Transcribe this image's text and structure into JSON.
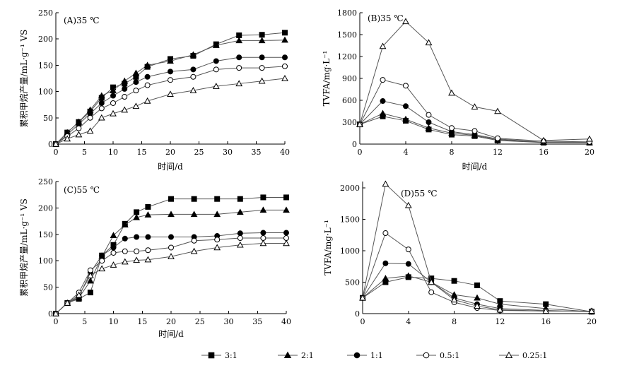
{
  "legend": [
    {
      "label": "3:1",
      "marker": "square",
      "fill": "#000000"
    },
    {
      "label": "2:1",
      "marker": "triangle",
      "fill": "#000000"
    },
    {
      "label": "1:1",
      "marker": "circle",
      "fill": "#000000"
    },
    {
      "label": "0.5:1",
      "marker": "circle",
      "fill": "#ffffff"
    },
    {
      "label": "0.25:1",
      "marker": "triangle",
      "fill": "#ffffff"
    }
  ],
  "colors": {
    "line": "#555555",
    "marker": "#000000"
  },
  "chart_data": [
    {
      "id": "A",
      "type": "line",
      "panel_label": "(A)35 ℃",
      "xlabel": "时间/d",
      "ylabel": "累积甲烷产量/mL·g⁻¹ VS",
      "xlim": [
        0,
        40
      ],
      "ylim": [
        0,
        250
      ],
      "xticks": [
        0,
        5,
        10,
        15,
        20,
        25,
        30,
        35,
        40
      ],
      "yticks": [
        0,
        50,
        100,
        150,
        200,
        250
      ],
      "grid": false,
      "x": [
        0,
        2,
        4,
        6,
        8,
        10,
        12,
        14,
        16,
        20,
        24,
        28,
        32,
        36,
        40
      ],
      "series": [
        {
          "name": "3:1",
          "values": [
            0,
            22,
            42,
            62,
            88,
            108,
            115,
            128,
            147,
            162,
            168,
            190,
            207,
            208,
            212
          ]
        },
        {
          "name": "2:1",
          "values": [
            0,
            22,
            42,
            65,
            92,
            102,
            120,
            135,
            150,
            158,
            170,
            188,
            197,
            197,
            198
          ]
        },
        {
          "name": "1:1",
          "values": [
            0,
            18,
            38,
            58,
            78,
            92,
            105,
            118,
            128,
            138,
            142,
            158,
            165,
            165,
            165
          ]
        },
        {
          "name": "0.5:1",
          "values": [
            0,
            15,
            30,
            50,
            68,
            78,
            90,
            102,
            112,
            122,
            128,
            142,
            145,
            145,
            148
          ]
        },
        {
          "name": "0.25:1",
          "values": [
            0,
            10,
            18,
            25,
            50,
            58,
            65,
            72,
            82,
            95,
            102,
            110,
            115,
            120,
            125
          ]
        }
      ]
    },
    {
      "id": "B",
      "type": "line",
      "panel_label": "(B)35 ℃",
      "xlabel": "时间/d",
      "ylabel": "TVFA/mg·L⁻¹",
      "xlim": [
        0,
        20
      ],
      "ylim": [
        0,
        1800
      ],
      "xticks": [
        0,
        4,
        8,
        12,
        16,
        20
      ],
      "yticks": [
        0,
        300,
        600,
        900,
        1200,
        1500,
        1800
      ],
      "grid": false,
      "x": [
        0,
        2,
        4,
        6,
        8,
        10,
        12,
        16,
        20
      ],
      "series": [
        {
          "name": "3:1",
          "values": [
            270,
            380,
            320,
            200,
            130,
            110,
            50,
            20,
            20
          ]
        },
        {
          "name": "2:1",
          "values": [
            270,
            420,
            340,
            220,
            150,
            120,
            60,
            25,
            20
          ]
        },
        {
          "name": "1:1",
          "values": [
            270,
            590,
            520,
            300,
            170,
            130,
            70,
            25,
            25
          ]
        },
        {
          "name": "0.5:1",
          "values": [
            270,
            880,
            800,
            400,
            220,
            180,
            80,
            40,
            30
          ]
        },
        {
          "name": "0.25:1",
          "values": [
            270,
            1340,
            1680,
            1390,
            700,
            510,
            450,
            50,
            70
          ]
        }
      ]
    },
    {
      "id": "C",
      "type": "line",
      "panel_label": "(C)55 ℃",
      "xlabel": "时间/d",
      "ylabel": "累积甲烷产量/mL·g⁻¹ VS",
      "xlim": [
        0,
        40
      ],
      "ylim": [
        0,
        250
      ],
      "xticks": [
        0,
        5,
        10,
        15,
        20,
        25,
        30,
        35,
        40
      ],
      "yticks": [
        0,
        50,
        100,
        150,
        200,
        250
      ],
      "grid": false,
      "x": [
        0,
        2,
        4,
        6,
        8,
        10,
        12,
        14,
        16,
        20,
        24,
        28,
        32,
        36,
        40
      ],
      "series": [
        {
          "name": "3:1",
          "values": [
            0,
            20,
            28,
            40,
            110,
            130,
            170,
            192,
            202,
            217,
            217,
            217,
            217,
            220,
            220
          ]
        },
        {
          "name": "2:1",
          "values": [
            0,
            20,
            30,
            62,
            108,
            148,
            168,
            182,
            187,
            188,
            188,
            188,
            192,
            196,
            196
          ]
        },
        {
          "name": "1:1",
          "values": [
            0,
            20,
            32,
            78,
            110,
            125,
            142,
            145,
            145,
            145,
            145,
            147,
            152,
            153,
            153
          ]
        },
        {
          "name": "0.5:1",
          "values": [
            0,
            20,
            40,
            82,
            100,
            115,
            118,
            118,
            120,
            125,
            138,
            140,
            143,
            143,
            143
          ]
        },
        {
          "name": "0.25:1",
          "values": [
            0,
            20,
            35,
            72,
            85,
            92,
            98,
            101,
            102,
            108,
            118,
            125,
            130,
            133,
            133
          ]
        }
      ]
    },
    {
      "id": "D",
      "type": "line",
      "panel_label": "(D)55 ℃",
      "xlabel": "",
      "ylabel": "TVFA/mg·L⁻¹",
      "xlim": [
        0,
        20
      ],
      "ylim": [
        0,
        2100
      ],
      "xticks": [
        0,
        4,
        8,
        12,
        16,
        20
      ],
      "yticks": [
        0,
        500,
        1000,
        1500,
        2000
      ],
      "grid": false,
      "x": [
        0,
        2,
        4,
        6,
        8,
        10,
        12,
        16,
        20
      ],
      "series": [
        {
          "name": "3:1",
          "values": [
            250,
            500,
            580,
            560,
            520,
            450,
            200,
            150,
            30
          ]
        },
        {
          "name": "2:1",
          "values": [
            250,
            560,
            600,
            500,
            300,
            250,
            150,
            80,
            30
          ]
        },
        {
          "name": "1:1",
          "values": [
            250,
            800,
            790,
            500,
            250,
            150,
            80,
            50,
            30
          ]
        },
        {
          "name": "0.5:1",
          "values": [
            250,
            1280,
            1020,
            340,
            180,
            90,
            50,
            40,
            40
          ]
        },
        {
          "name": "0.25:1",
          "values": [
            250,
            2060,
            1720,
            500,
            220,
            120,
            60,
            40,
            40
          ]
        }
      ]
    }
  ]
}
